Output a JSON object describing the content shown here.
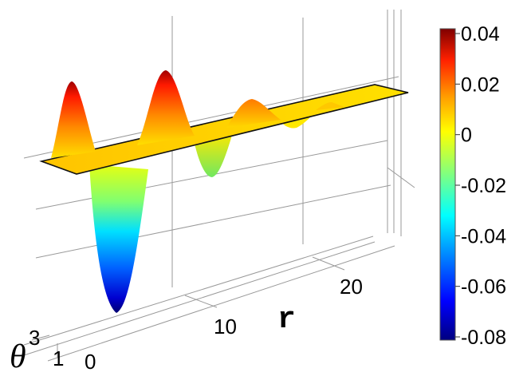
{
  "chart_data": {
    "type": "surface",
    "xlabel": "r",
    "ylabel": "θ",
    "ylabel_superscript": "3",
    "x_ticks": [
      "10",
      "20"
    ],
    "y_ticks": [
      "1",
      "0"
    ],
    "colorbar": {
      "ticks": [
        "0.04",
        "0.02",
        "0",
        "-0.02",
        "-0.04",
        "-0.06",
        "-0.08"
      ],
      "range": [
        -0.08,
        0.04
      ],
      "colormap": [
        "#00007f",
        "#0000ff",
        "#00a0ff",
        "#00ffff",
        "#80ff80",
        "#ffff00",
        "#ff9f00",
        "#ff2000",
        "#7f0000"
      ]
    },
    "surface_profile": {
      "r": [
        0,
        2,
        4,
        6,
        8,
        10,
        12,
        14,
        16,
        18,
        20,
        22
      ],
      "z": [
        0.0,
        0.036,
        -0.072,
        0.035,
        0.0,
        -0.012,
        0.013,
        -0.004,
        0.004,
        0.001,
        0.0,
        0.0
      ]
    }
  }
}
